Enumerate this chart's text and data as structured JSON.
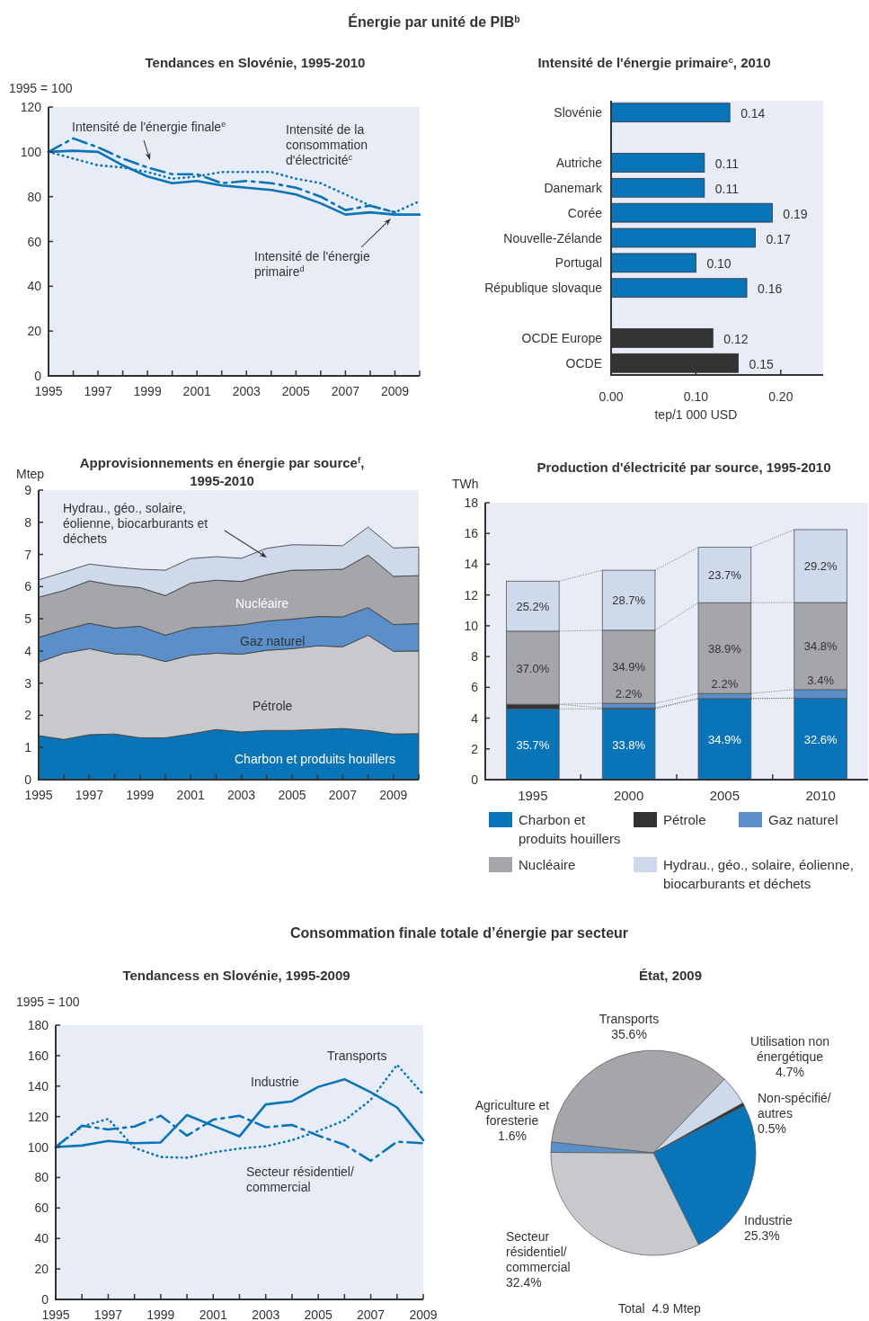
{
  "chart_data": [
    {
      "type": "line",
      "title": "Tendances en Slovénie, 1995-2010",
      "ylabel": "1995 = 100",
      "annotations": [
        "Énergie par unité de PIB$^{b}$"
      ],
      "x": [
        1995,
        1996,
        1997,
        1998,
        1999,
        2000,
        2001,
        2002,
        2003,
        2004,
        2005,
        2006,
        2007,
        2008,
        2009,
        2010
      ],
      "xlim": [
        1995,
        2010
      ],
      "xticks": [
        1995,
        {
          "value": 1996,
          "label": null
        },
        1997,
        {
          "value": 1998,
          "label": null
        },
        1999,
        {
          "value": 2000,
          "label": null
        },
        2001,
        {
          "value": 2002,
          "label": null
        },
        2003,
        {
          "value": 2004,
          "label": null
        },
        2005,
        {
          "value": 2006,
          "label": null
        },
        2007,
        {
          "value": 2008,
          "label": null
        },
        2009,
        {
          "value": 2010,
          "label": null
        }
      ],
      "ylim": [
        0,
        120
      ],
      "yticks": [
        0,
        20,
        40,
        60,
        80,
        100,
        120
      ],
      "series": [
        {
          "name": "Intensité de l'énergie finale$^{e}$",
          "color": "#0a74b9",
          "line_style": "dashed",
          "values": [
            100,
            106,
            102,
            97,
            93,
            90,
            90,
            86,
            87,
            86,
            84,
            80,
            74,
            76,
            73,
            null
          ]
        },
        {
          "name": "Intensité de la consommation d'électricité$^{c}$",
          "color": "#0a74b9",
          "line_style": "dotted",
          "values": [
            100,
            97,
            94,
            93,
            91,
            88,
            89,
            91,
            91,
            91,
            88,
            86,
            81,
            76,
            73,
            78
          ]
        },
        {
          "name": "Intensité de l'énergie primaire$^{d}$",
          "color": "#0a74b9",
          "line_style": "solid",
          "values": [
            100,
            100.5,
            100,
            94,
            89,
            86,
            87,
            85,
            84,
            83,
            81,
            77,
            72,
            73,
            72,
            72
          ]
        }
      ]
    },
    {
      "type": "bar",
      "orientation": "horizontal",
      "title": "Intensité de l'énergie primaire$^{c}$, 2010",
      "xlabel": "tep/1 000 USD",
      "categories": [
        "Slovénie",
        null,
        "Autriche",
        "Danemark",
        "Corée",
        "Nouvelle-Zélande",
        "Portugal",
        "République slovaque",
        null,
        "OCDE Europe",
        "OCDE"
      ],
      "values": [
        0.14,
        null,
        0.11,
        0.11,
        0.19,
        0.17,
        0.1,
        0.16,
        null,
        0.12,
        0.15
      ],
      "colors": [
        "#0a74b9",
        null,
        "#0a74b9",
        "#0a74b9",
        "#0a74b9",
        "#0a74b9",
        "#0a74b9",
        "#0a74b9",
        null,
        "#333333",
        "#333333"
      ],
      "value_labels": [
        "0.14",
        null,
        "0.11",
        "0.11",
        "0.19",
        "0.17",
        "0.10",
        "0.16",
        null,
        "0.12",
        "0.15"
      ],
      "xlim": [
        0,
        0.25
      ],
      "xticks": [
        {
          "value": 0,
          "label": "0.00"
        },
        {
          "value": 0.1,
          "label": "0.10"
        },
        {
          "value": 0.2,
          "label": "0.20"
        }
      ]
    },
    {
      "type": "area",
      "stacked": true,
      "title": "Approvisionnements en énergie par source$^{f}$, 1995-2010",
      "ylabel": "Mtep",
      "x": [
        1995,
        1996,
        1997,
        1998,
        1999,
        2000,
        2001,
        2002,
        2003,
        2004,
        2005,
        2006,
        2007,
        2008,
        2009,
        2010
      ],
      "xlim": [
        1995,
        2010
      ],
      "xticks": [
        1995,
        {
          "value": 1996,
          "label": null
        },
        1997,
        {
          "value": 1998,
          "label": null
        },
        1999,
        {
          "value": 2000,
          "label": null
        },
        2001,
        {
          "value": 2002,
          "label": null
        },
        2003,
        {
          "value": 2004,
          "label": null
        },
        2005,
        {
          "value": 2006,
          "label": null
        },
        2007,
        {
          "value": 2008,
          "label": null
        },
        2009,
        {
          "value": 2010,
          "label": null
        }
      ],
      "ylim": [
        0,
        9
      ],
      "yticks": [
        0,
        1,
        2,
        3,
        4,
        5,
        6,
        7,
        8,
        9
      ],
      "series": [
        {
          "name": "Charbon et produits houillers",
          "color": "#0a74b9",
          "values": [
            1.37,
            1.25,
            1.4,
            1.42,
            1.3,
            1.3,
            1.42,
            1.56,
            1.48,
            1.53,
            1.53,
            1.56,
            1.59,
            1.53,
            1.42,
            1.43
          ]
        },
        {
          "name": "Pétrole",
          "color": "#c8c9cc",
          "values": [
            2.28,
            2.68,
            2.67,
            2.49,
            2.58,
            2.37,
            2.45,
            2.37,
            2.42,
            2.49,
            2.54,
            2.6,
            2.54,
            2.96,
            2.57,
            2.57
          ]
        },
        {
          "name": "Gaz naturel",
          "color": "#5b8fca",
          "values": [
            0.77,
            0.73,
            0.79,
            0.8,
            0.89,
            0.82,
            0.85,
            0.83,
            0.91,
            0.91,
            0.92,
            0.91,
            0.93,
            0.86,
            0.83,
            0.85
          ]
        },
        {
          "name": "Nucléaire",
          "color": "#a5a6aa",
          "values": [
            1.25,
            1.22,
            1.32,
            1.33,
            1.2,
            1.23,
            1.39,
            1.44,
            1.35,
            1.44,
            1.52,
            1.45,
            1.48,
            1.63,
            1.5,
            1.49
          ]
        },
        {
          "name": "Hydrau., géo., solaire, éolienne, biocarburants et déchets",
          "color": "#ced9ec",
          "values": [
            0.54,
            0.57,
            0.52,
            0.57,
            0.57,
            0.79,
            0.76,
            0.73,
            0.72,
            0.82,
            0.79,
            0.77,
            0.73,
            0.87,
            0.88,
            0.89
          ]
        }
      ]
    },
    {
      "type": "bar",
      "stacked": true,
      "title": "Production d'électricité par source, 1995-2010",
      "ylabel": "TWh",
      "legend": "bottom",
      "annotations": [
        "35.7%",
        "37.0%",
        "25.2%",
        "33.8%",
        {
          "text": "2.2%",
          "x": "2000",
          "y": 4.96
        },
        "34.9%",
        "28.7%",
        "34.9%",
        {
          "text": "2.2%",
          "x": "2005",
          "y": 5.6
        },
        "38.9%",
        "23.7%",
        "32.6%",
        {
          "text": "3.4%",
          "x": "2010",
          "y": 5.85
        },
        "34.8%",
        "29.2%"
      ],
      "categories": [
        "1995",
        "2000",
        "2005",
        "2010"
      ],
      "ylim": [
        0,
        18
      ],
      "yticks": [
        0,
        2,
        4,
        6,
        8,
        10,
        12,
        14,
        16,
        18
      ],
      "series": [
        {
          "name": "Charbon et produits houillers",
          "color": "#0a74b9",
          "values": [
            4.6,
            4.6,
            5.27,
            5.3
          ]
        },
        {
          "name": "Pétrole",
          "color": "#333333",
          "values": [
            0.3,
            0.06,
            0,
            0
          ]
        },
        {
          "name": "Gaz naturel",
          "color": "#5b8fca",
          "values": [
            0,
            0.3,
            0.33,
            0.55
          ]
        },
        {
          "name": "Nucléaire",
          "color": "#a5a6aa",
          "values": [
            4.75,
            4.75,
            5.9,
            5.66
          ]
        },
        {
          "name": "Hydrau., géo., solaire, éolienne, biocarburants et déchets",
          "color": "#ced9ec",
          "values": [
            3.25,
            3.9,
            3.6,
            4.74
          ]
        }
      ]
    },
    {
      "type": "line",
      "title": "Tendancess en Slovénie, 1995-2009",
      "ylabel": "1995 = 100",
      "annotations": [
        "Consommation finale totale d’énergie par secteur"
      ],
      "x": [
        1995,
        1996,
        1997,
        1998,
        1999,
        2000,
        2001,
        2002,
        2003,
        2004,
        2005,
        2006,
        2007,
        2008,
        2009
      ],
      "xlim": [
        1995,
        2009
      ],
      "xticks": [
        1995,
        {
          "value": 1996,
          "label": null
        },
        1997,
        {
          "value": 1998,
          "label": null
        },
        1999,
        {
          "value": 2000,
          "label": null
        },
        2001,
        {
          "value": 2002,
          "label": null
        },
        2003,
        {
          "value": 2004,
          "label": null
        },
        2005,
        {
          "value": 2006,
          "label": null
        },
        2007,
        {
          "value": 2008,
          "label": null
        },
        2009
      ],
      "ylim": [
        0,
        180
      ],
      "yticks": [
        0,
        20,
        40,
        60,
        80,
        100,
        120,
        140,
        160,
        180
      ],
      "series": [
        {
          "name": "Industrie",
          "color": "#0a74b9",
          "line_style": "solid",
          "values": [
            100,
            101,
            104,
            102.5,
            103,
            121,
            114,
            107,
            128,
            130,
            139.5,
            144.5,
            136,
            126,
            104.5
          ]
        },
        {
          "name": "Transports",
          "color": "#0a74b9",
          "line_style": "dotted",
          "values": [
            100,
            113.5,
            118.5,
            99.5,
            93.5,
            93,
            96.5,
            99,
            100.5,
            104.5,
            110.5,
            117.5,
            131,
            154,
            134.5
          ]
        },
        {
          "name": "Secteur résidentiel/commercial",
          "color": "#0a74b9",
          "line_style": "dashed",
          "values": [
            100,
            114,
            111.5,
            113.5,
            120.5,
            107.5,
            118,
            120.5,
            113,
            114.5,
            107.5,
            101.5,
            91,
            103.5,
            102.5
          ]
        }
      ]
    },
    {
      "type": "pie",
      "title": "État, 2009",
      "annotations": [
        "Total  4.9 Mtep"
      ],
      "categories": [
        "Transports",
        "Utilisation non énergétique",
        "Non-spécifié/autres",
        "Industrie",
        "Secteur résidentiel/commercial",
        "Agriculture et foresterie"
      ],
      "values": [
        35.6,
        4.7,
        0.5,
        25.3,
        32.4,
        1.6
      ],
      "colors": [
        "#a5a6aa",
        "#ced9ec",
        "#333333",
        "#0a74b9",
        "#c8c9cc",
        "#5b8fca"
      ],
      "value_labels": [
        "35.6%",
        "4.7%",
        "0.5%",
        "25.3%",
        "32.4%",
        "1.6%"
      ]
    }
  ]
}
